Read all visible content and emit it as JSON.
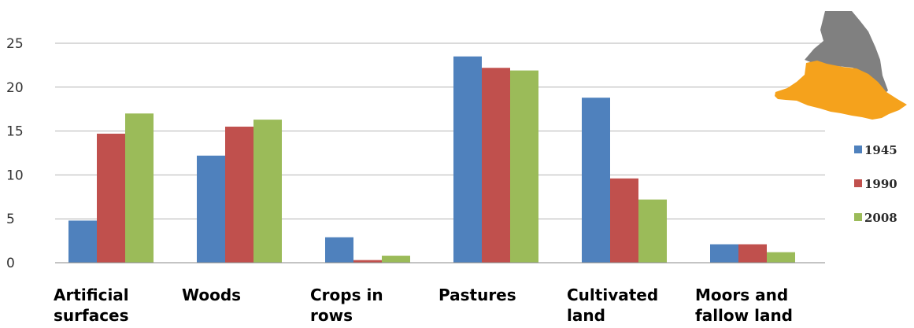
{
  "chart_data": {
    "type": "bar",
    "categories": [
      [
        "Artificial",
        "surfaces"
      ],
      [
        "Woods"
      ],
      [
        "Crops in",
        "rows"
      ],
      [
        "Pastures"
      ],
      [
        "Cultivated",
        "land"
      ],
      [
        "Moors and",
        "fallow land"
      ]
    ],
    "series": [
      {
        "name": "1945",
        "color": "#4f81bd",
        "values": [
          4.8,
          12.2,
          2.9,
          23.5,
          18.8,
          2.1
        ]
      },
      {
        "name": "1990",
        "color": "#c0504d",
        "values": [
          14.7,
          15.5,
          0.3,
          22.2,
          9.6,
          2.1
        ]
      },
      {
        "name": "2008",
        "color": "#9bbb59",
        "values": [
          17.0,
          16.3,
          0.8,
          21.9,
          7.2,
          1.2
        ]
      }
    ],
    "y_ticks": [
      "0",
      "5",
      "10",
      "15",
      "20",
      "25"
    ],
    "ylim": [
      0,
      25
    ],
    "grid": true,
    "legend_position": "right",
    "title": "",
    "xlabel": "",
    "ylabel": ""
  },
  "inset_map": {
    "icon": "region-map-icon",
    "colors": {
      "upper": "#808080",
      "lower": "#f5a21c"
    }
  }
}
